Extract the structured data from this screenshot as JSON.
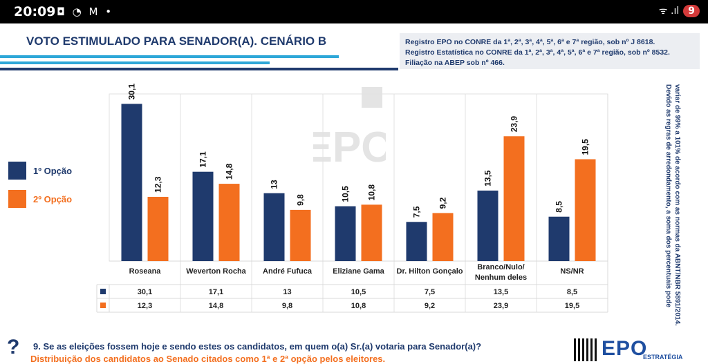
{
  "status": {
    "time": "20:09",
    "icons": "◘ ◔ M •",
    "right": "ᯤ .ıl",
    "battery": "9"
  },
  "title": "VOTO ESTIMULADO PARA SENADOR(A).  CENÁRIO B",
  "registry": [
    "Registro EPO no CONRE da 1ª, 2ª, 3ª, 4ª, 5ª, 6ª e 7ª região, sob nº J 8618.",
    "Registro Estatística no CONRE da 1ª, 2ª, 3ª, 4ª, 5ª, 6ª e 7ª região, sob nº 8532.",
    "Filiação na ABEP sob nº 466."
  ],
  "colors": {
    "first": "#1f3a6d",
    "second": "#f36f1f"
  },
  "chart_data": {
    "type": "bar",
    "categories": [
      "Roseana",
      "Weverton Rocha",
      "André Fufuca",
      "Eliziane Gama",
      "Dr. Hilton Gonçalo",
      "Branco/Nulo/\nNenhum deles",
      "NS/NR"
    ],
    "series": [
      {
        "name": "1º Opção",
        "values": [
          30.1,
          17.1,
          13,
          10.5,
          7.5,
          13.5,
          8.5
        ],
        "labels": [
          "30,1",
          "17,1",
          "13",
          "10,5",
          "7,5",
          "13,5",
          "8,5"
        ]
      },
      {
        "name": "2º Opção",
        "values": [
          12.3,
          14.8,
          9.8,
          10.8,
          9.2,
          23.9,
          19.5
        ],
        "labels": [
          "12,3",
          "14,8",
          "9,8",
          "10,8",
          "9,2",
          "23,9",
          "19,5"
        ]
      }
    ],
    "ylim": [
      0,
      32
    ],
    "legend": "left"
  },
  "watermark": "EPO",
  "note": "Devido as regras de arredondamento, a soma dos percentuais pode variar de 99% a 101% de acordo com as normas da ABNT/NBR 5891/2014.",
  "question": "9. Se as eleições fossem hoje e sendo estes os candidatos, em quem o(a) Sr.(a) votaria para Senador(a)?",
  "subtitle": "Distribuição dos candidatos ao Senado citados como 1ª e 2ª opção pelos eleitores.",
  "qmark": "?",
  "logo": "EPO",
  "logo_sub": "ESTRATÉGIA"
}
